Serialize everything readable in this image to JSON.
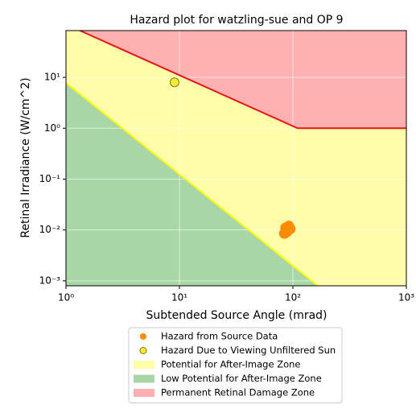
{
  "chart_data": {
    "type": "scatter",
    "title": "Hazard plot for watzling-sue and OP 9",
    "x_label": "Subtended Source Angle (mrad)",
    "y_label": "Retinal Irradiance (W/cm^2)",
    "xlog": true,
    "ylog": true,
    "grid": true,
    "xlim": [
      1,
      1000
    ],
    "ylim": [
      0.0008,
      83
    ],
    "xticks": [
      {
        "value": 1,
        "label": "10⁰"
      },
      {
        "value": 10,
        "label": "10¹"
      },
      {
        "value": 100,
        "label": "10²"
      },
      {
        "value": 1000,
        "label": "10³"
      }
    ],
    "yticks": [
      {
        "value": 0.001,
        "label": "10⁻³"
      },
      {
        "value": 0.01,
        "label": "10⁻²"
      },
      {
        "value": 0.1,
        "label": "10⁻¹"
      },
      {
        "value": 1,
        "label": "10⁰"
      },
      {
        "value": 10,
        "label": "10¹"
      }
    ],
    "legend_position": "below",
    "series": [
      {
        "name": "Hazard from Source Data",
        "color": "#ff8c00",
        "edge": "#ff8c00",
        "x": [
          86,
          90,
          84,
          92,
          88,
          95,
          89
        ],
        "values": [
          0.011,
          0.0095,
          0.0085,
          0.012,
          0.009,
          0.0105,
          0.0102
        ]
      },
      {
        "name": "Hazard Due to Viewing Unfiltered Sun",
        "color": "#f5e93a",
        "edge": "#8a7a00",
        "x": [
          9.06
        ],
        "values": [
          8.0
        ]
      }
    ],
    "zones": [
      {
        "name": "Potential for After-Image Zone",
        "color": "#fffcaa",
        "fill_to": "all"
      },
      {
        "name": "Low Potential for After-Image Zone",
        "color": "#a9d6a6",
        "fill_to": "bottom",
        "line_color": "#ffff00",
        "boundary_x": [
          1,
          166
        ],
        "boundary_y": [
          7.8,
          0.0008
        ]
      },
      {
        "name": "Permanent Retinal Damage Zone",
        "color": "#ffb0b0",
        "fill_to": "top",
        "line_color": "#e8161b",
        "boundary_x": [
          1.33,
          110,
          1000
        ],
        "boundary_y": [
          83,
          1,
          1
        ]
      }
    ]
  }
}
